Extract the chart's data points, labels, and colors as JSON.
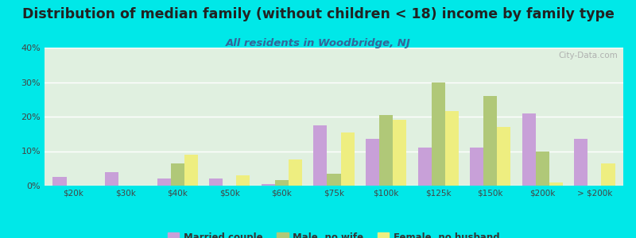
{
  "title": "Distribution of median family (without children < 18) income by family type",
  "subtitle": "All residents in Woodbridge, NJ",
  "categories": [
    "$20k",
    "$30k",
    "$40k",
    "$50k",
    "$60k",
    "$75k",
    "$100k",
    "$125k",
    "$150k",
    "$200k",
    "> $200k"
  ],
  "married_couple": [
    2.5,
    4.0,
    2.0,
    2.0,
    0.5,
    17.5,
    13.5,
    11.0,
    11.0,
    21.0,
    13.5
  ],
  "male_no_wife": [
    0.0,
    0.0,
    6.5,
    0.0,
    1.5,
    3.5,
    20.5,
    30.0,
    26.0,
    10.0,
    0.0
  ],
  "female_no_husband": [
    0.0,
    0.0,
    9.0,
    3.0,
    7.5,
    15.5,
    19.0,
    21.5,
    17.0,
    1.0,
    6.5
  ],
  "color_married": "#c8a0d8",
  "color_male": "#b0c878",
  "color_female": "#eeee80",
  "bg_outer": "#00e8e8",
  "bg_chart_top": "#e0f0e0",
  "bg_chart_bottom": "#f8f8f0",
  "ylim": [
    0,
    40
  ],
  "yticks": [
    0,
    10,
    20,
    30,
    40
  ],
  "ytick_labels": [
    "0%",
    "10%",
    "20%",
    "30%",
    "40%"
  ],
  "title_fontsize": 12.5,
  "subtitle_fontsize": 9.5,
  "title_color": "#222222",
  "subtitle_color": "#336699",
  "watermark": "City-Data.com"
}
